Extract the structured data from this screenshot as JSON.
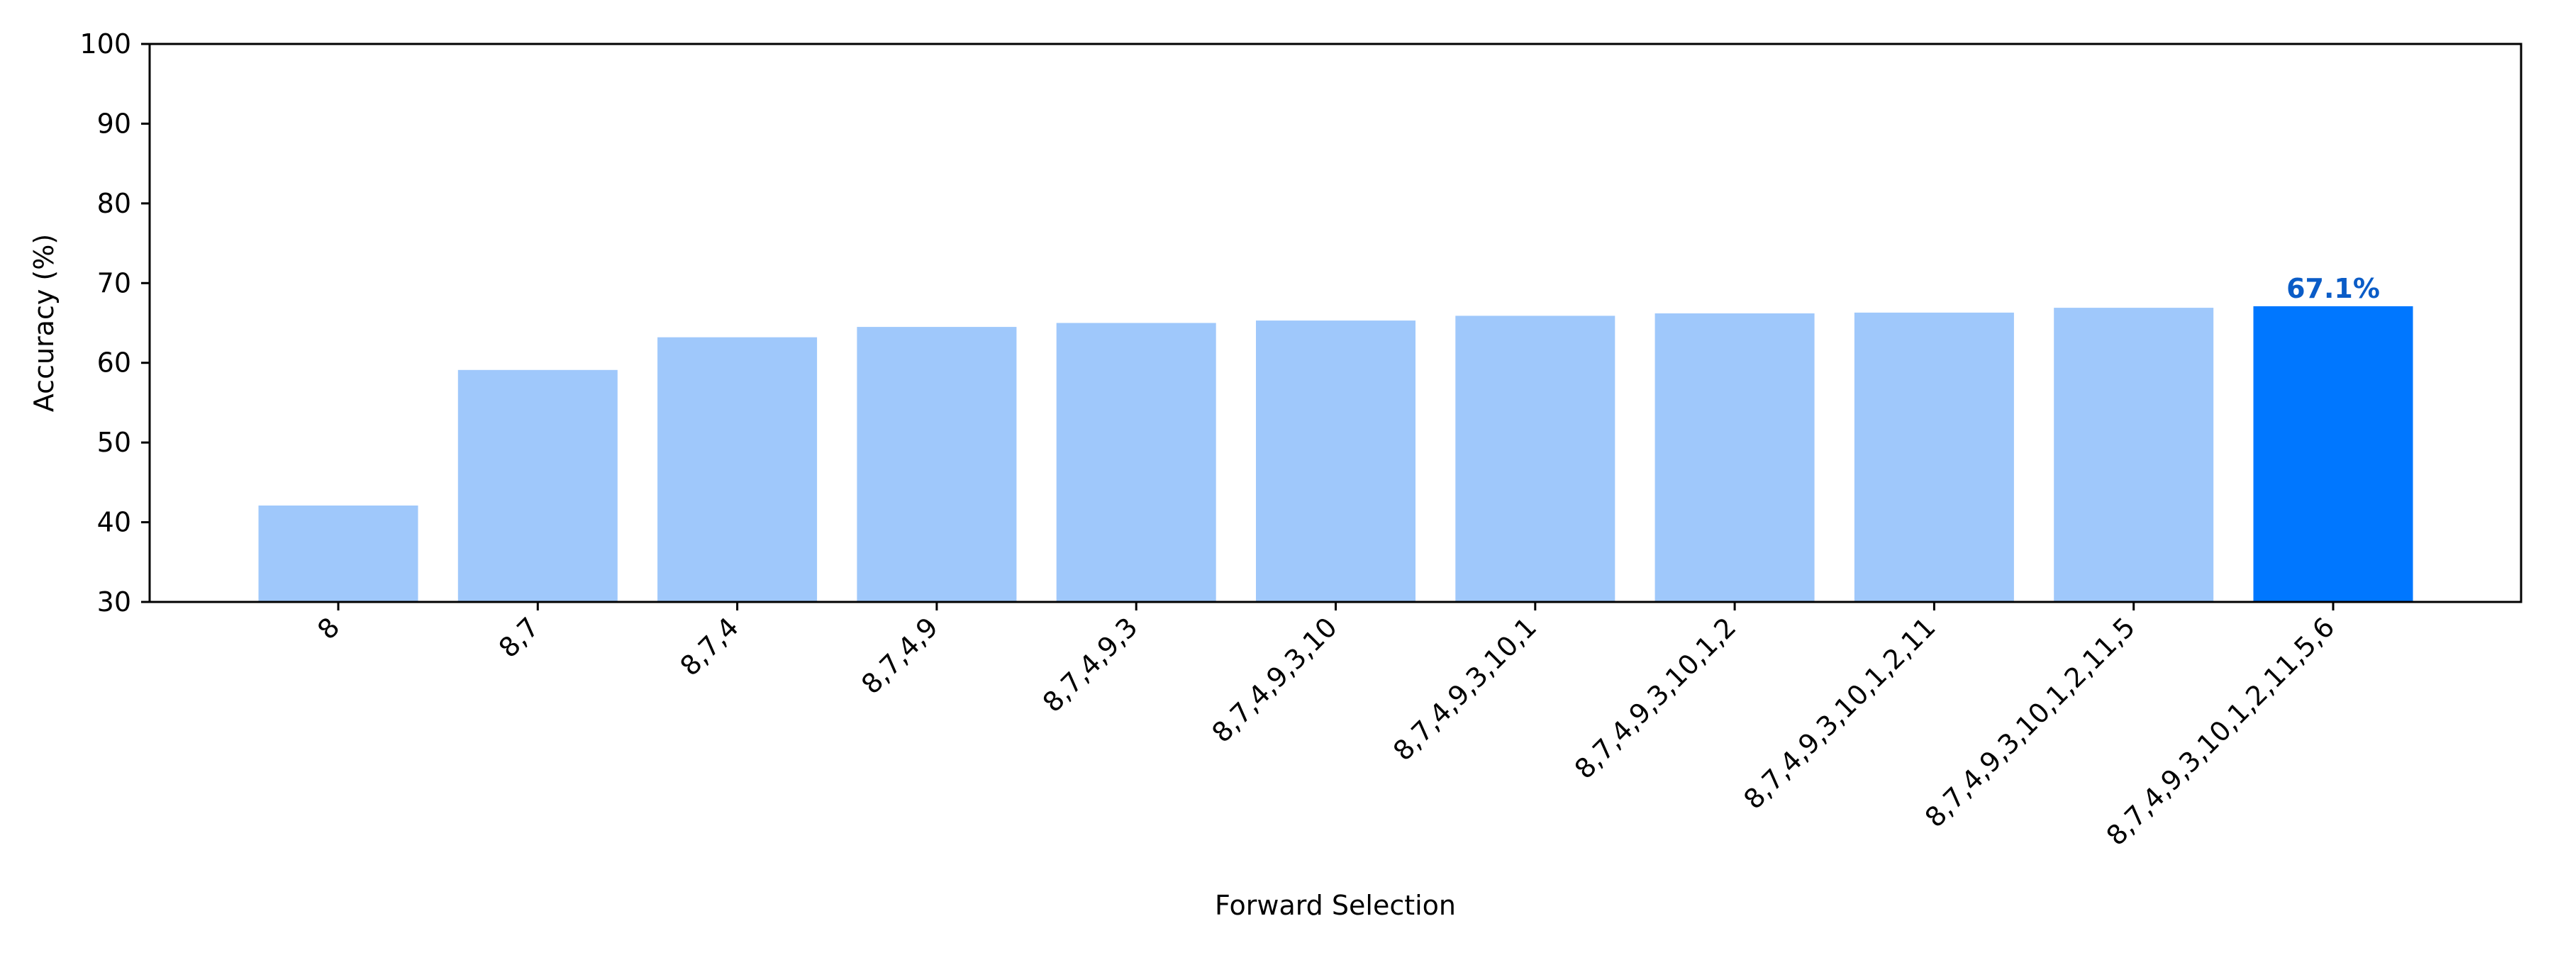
{
  "chart_data": {
    "type": "bar",
    "title": "",
    "xlabel": "Forward Selection",
    "ylabel": "Accuracy (%)",
    "ylim": [
      30,
      100
    ],
    "yticks": [
      30,
      40,
      50,
      60,
      70,
      80,
      90,
      100
    ],
    "grid": false,
    "categories": [
      "8",
      "8,7",
      "8,7,4",
      "8,7,4,9",
      "8,7,4,9,3",
      "8,7,4,9,3,10",
      "8,7,4,9,3,10,1",
      "8,7,4,9,3,10,1,2",
      "8,7,4,9,3,10,1,2,11",
      "8,7,4,9,3,10,1,2,11,5",
      "8,7,4,9,3,10,1,2,11,5,6"
    ],
    "values": [
      42.1,
      59.1,
      63.2,
      64.5,
      65.0,
      65.3,
      65.9,
      66.2,
      66.3,
      66.9,
      67.1
    ],
    "highlight_index": 10,
    "highlight_label": "67.1%",
    "colors": {
      "bar": "#9fc8fb",
      "highlight": "#0077ff",
      "highlight_label": "#0a5cc7",
      "axis": "#000000"
    }
  }
}
